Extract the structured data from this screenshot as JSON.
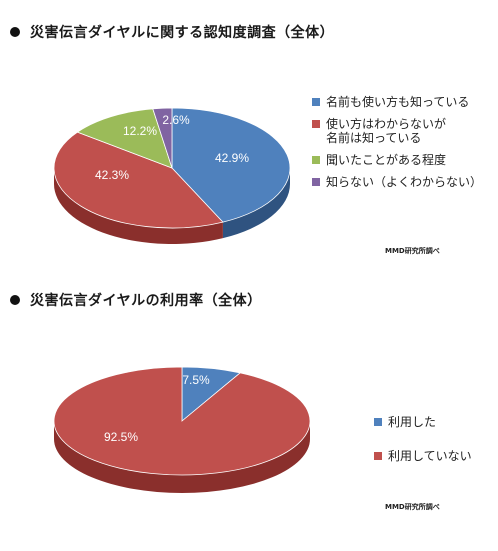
{
  "chart_data": [
    {
      "type": "pie",
      "title": "災害伝言ダイヤルに関する認知度調査（全体）",
      "categories": [
        "名前も使い方も知っている",
        "使い方はわからないが名前は知っている",
        "聞いたことがある程度",
        "知らない（よくわからない）"
      ],
      "values": [
        42.9,
        42.3,
        12.2,
        2.6
      ],
      "labels": [
        "42.9%",
        "42.3%",
        "12.2%",
        "2.6%"
      ],
      "colors": [
        "#4F81BD",
        "#C0504D",
        "#9BBB59",
        "#8064A2"
      ],
      "side_colors": [
        "#2f5380",
        "#8a2f2c",
        "#6f8a3a",
        "#5a4578"
      ],
      "legend": {
        "placement": "right",
        "items": [
          "名前も使い方も知っている",
          "使い方はわからないが\n名前は知っている",
          "聞いたことがある程度",
          "知らない（よくわからない）"
        ]
      },
      "credit": "MMD研究所調べ"
    },
    {
      "type": "pie",
      "title": "災害伝言ダイヤルの利用率（全体）",
      "categories": [
        "利用した",
        "利用していない"
      ],
      "values": [
        7.5,
        92.5
      ],
      "labels": [
        "7.5%",
        "92.5%"
      ],
      "colors": [
        "#4F81BD",
        "#C0504D"
      ],
      "side_colors": [
        "#2f5380",
        "#8a2f2c"
      ],
      "legend": {
        "placement": "right",
        "items": [
          "利用した",
          "利用していない"
        ]
      },
      "credit": "MMD研究所調べ"
    }
  ]
}
